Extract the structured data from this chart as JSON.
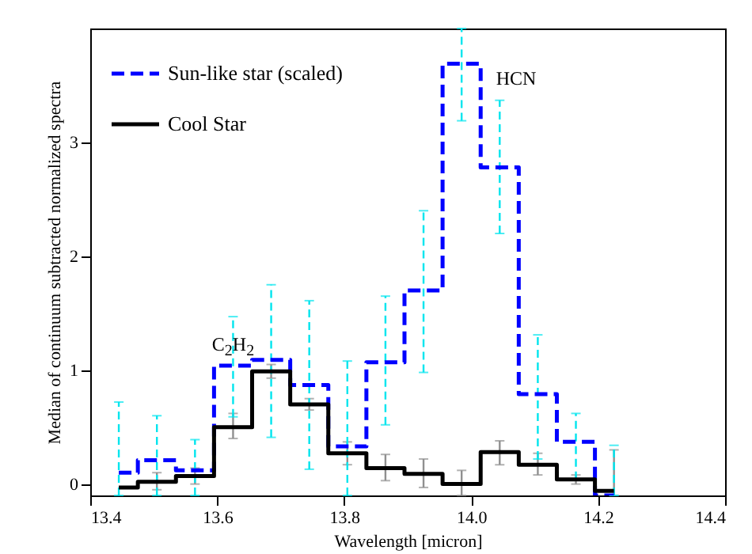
{
  "chart_data": {
    "type": "step",
    "xlabel": "Wavelength [micron]",
    "ylabel": "Median of continuum subtracted normalized spectra",
    "x": [
      13.445,
      13.505,
      13.565,
      13.625,
      13.685,
      13.745,
      13.805,
      13.865,
      13.925,
      13.985,
      14.045,
      14.105,
      14.165,
      14.225
    ],
    "series": [
      {
        "name": "Sun-like star (scaled)",
        "color": "#0000ff",
        "line_style": "dashed",
        "values": [
          0.1,
          0.21,
          0.12,
          1.04,
          1.09,
          0.87,
          0.33,
          1.07,
          1.7,
          3.69,
          2.78,
          0.79,
          0.37,
          -0.1
        ],
        "errors": [
          [
            -0.1,
            0.72
          ],
          [
            -0.1,
            0.6
          ],
          [
            -0.1,
            0.39
          ],
          [
            0.59,
            1.47
          ],
          [
            0.41,
            1.75
          ],
          [
            0.13,
            1.61
          ],
          [
            -0.1,
            1.08
          ],
          [
            0.52,
            1.65
          ],
          [
            0.98,
            2.4
          ],
          [
            3.19,
            4.0
          ],
          [
            2.2,
            3.37
          ],
          [
            0.22,
            1.31
          ],
          [
            0.04,
            0.62
          ],
          [
            -0.1,
            0.34
          ]
        ]
      },
      {
        "name": "Cool Star",
        "color": "#000000",
        "line_style": "solid",
        "values": [
          -0.03,
          0.02,
          0.07,
          0.5,
          0.99,
          0.7,
          0.27,
          0.14,
          0.09,
          0.0,
          0.28,
          0.17,
          0.04,
          -0.06
        ],
        "errors": [
          null,
          [
            -0.05,
            0.1
          ],
          [
            0.0,
            0.14
          ],
          [
            0.4,
            0.62
          ],
          [
            0.93,
            1.05
          ],
          [
            0.65,
            0.75
          ],
          [
            0.17,
            0.37
          ],
          [
            0.03,
            0.26
          ],
          [
            -0.03,
            0.22
          ],
          [
            -0.1,
            0.12
          ],
          [
            0.17,
            0.38
          ],
          [
            0.08,
            0.27
          ],
          [
            0.0,
            0.08
          ],
          [
            -0.1,
            0.3
          ]
        ]
      }
    ],
    "annotations": [
      {
        "text": "C$_{2}$H$_{2}$",
        "x": 13.625,
        "y": 1.2
      },
      "HCN"
    ],
    "xlim": [
      13.4,
      14.4
    ],
    "xticks": [
      13.4,
      13.6,
      13.8,
      {
        "value": 14,
        "label": "14.0"
      },
      14.2,
      14.4
    ],
    "ylim": [
      -0.1,
      4.0
    ],
    "yticks": [
      0,
      1,
      2,
      3
    ],
    "legend": "top left",
    "grid": false
  }
}
